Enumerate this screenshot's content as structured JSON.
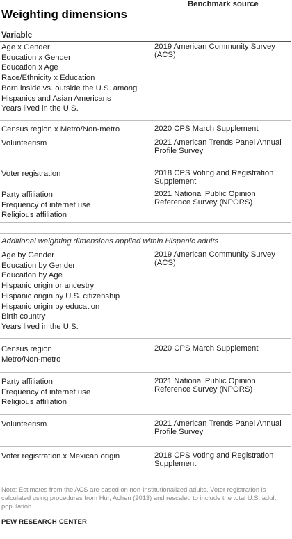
{
  "title": "Weighting dimensions",
  "headers": {
    "variable": "Variable",
    "source": "Benchmark source"
  },
  "section1": [
    {
      "vars": [
        "Age x Gender",
        "Education x Gender",
        "Education x Age",
        "Race/Ethnicity x Education",
        "Born inside vs. outside the U.S. among Hispanics and Asian Americans",
        "Years lived in the U.S."
      ],
      "source": "2019 American Community Survey (ACS)"
    },
    {
      "vars": [
        "Census region x Metro/Non-metro"
      ],
      "source": "2020 CPS March Supplement"
    },
    {
      "vars": [
        "Volunteerism"
      ],
      "source": "2021 American Trends Panel Annual Profile Survey"
    },
    {
      "vars": [
        "Voter registration"
      ],
      "source": "2018 CPS Voting and Registration Supplement"
    },
    {
      "vars": [
        "Party affiliation",
        "Frequency of internet use",
        "Religious affiliation"
      ],
      "source": "2021 National Public Opinion Reference Survey (NPORS)"
    }
  ],
  "subheading": "Additional weighting dimensions applied within Hispanic adults",
  "section2": [
    {
      "vars": [
        "Age by Gender",
        "Education by Gender",
        "Education by Age",
        "Hispanic origin or ancestry",
        "Hispanic origin by U.S. citizenship",
        "Hispanic origin by education",
        "Birth country",
        "Years lived in the U.S."
      ],
      "source": "2019 American Community Survey (ACS)"
    },
    {
      "vars": [
        "Census region",
        "Metro/Non-metro"
      ],
      "source": "2020 CPS March Supplement"
    },
    {
      "vars": [
        "Party affiliation",
        "Frequency of internet use",
        "Religious affiliation"
      ],
      "source": "2021 National Public Opinion Reference Survey (NPORS)"
    },
    {
      "vars": [
        "Volunteerism"
      ],
      "source": "2021 American Trends Panel Annual Profile Survey"
    },
    {
      "vars": [
        "Voter registration x Mexican origin"
      ],
      "source": "2018 CPS Voting and Registration Supplement"
    }
  ],
  "note": "Note: Estimates from the ACS are based on non-institutionalized adults. Voter registration is calculated using procedures from Hur, Achen (2013) and rescaled to include the total U.S. adult population.",
  "brand": "PEW RESEARCH CENTER"
}
